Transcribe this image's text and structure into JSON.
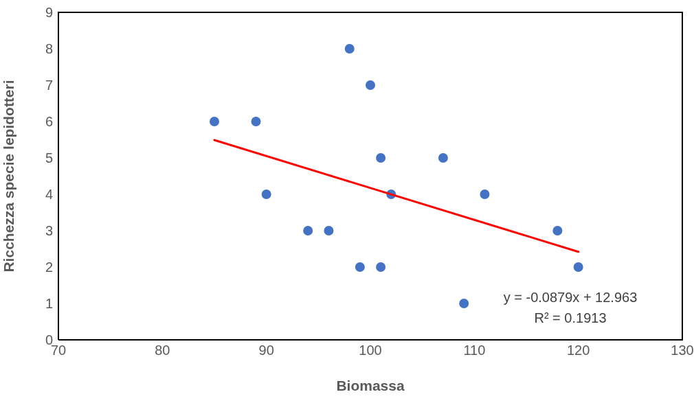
{
  "chart_data": {
    "type": "scatter",
    "xlabel": "Biomassa",
    "ylabel": "Ricchezza specie lepidotteri",
    "xlim": [
      70,
      130
    ],
    "xticks": [
      70,
      80,
      90,
      100,
      110,
      120,
      130
    ],
    "ylim": [
      0,
      9
    ],
    "yticks": [
      0,
      1,
      2,
      3,
      4,
      5,
      6,
      7,
      8,
      9
    ],
    "marker": "circle",
    "series": [
      {
        "type": "scatter",
        "color": "#4472c4",
        "x": [
          85,
          89,
          90,
          94,
          96,
          98,
          99,
          100,
          101,
          101,
          102,
          107,
          109,
          111,
          118,
          120
        ],
        "values": [
          6,
          6,
          4,
          3,
          3,
          8,
          2,
          7,
          5,
          2,
          4,
          5,
          1,
          4,
          3,
          2
        ]
      },
      {
        "type": "line",
        "color": "#ff0000",
        "x": [
          85,
          120
        ],
        "values": [
          5.49,
          2.42
        ],
        "marker": "none"
      }
    ],
    "annotations": [
      "y = -0.0879x + 12.963",
      "R² = 0.1913"
    ]
  }
}
